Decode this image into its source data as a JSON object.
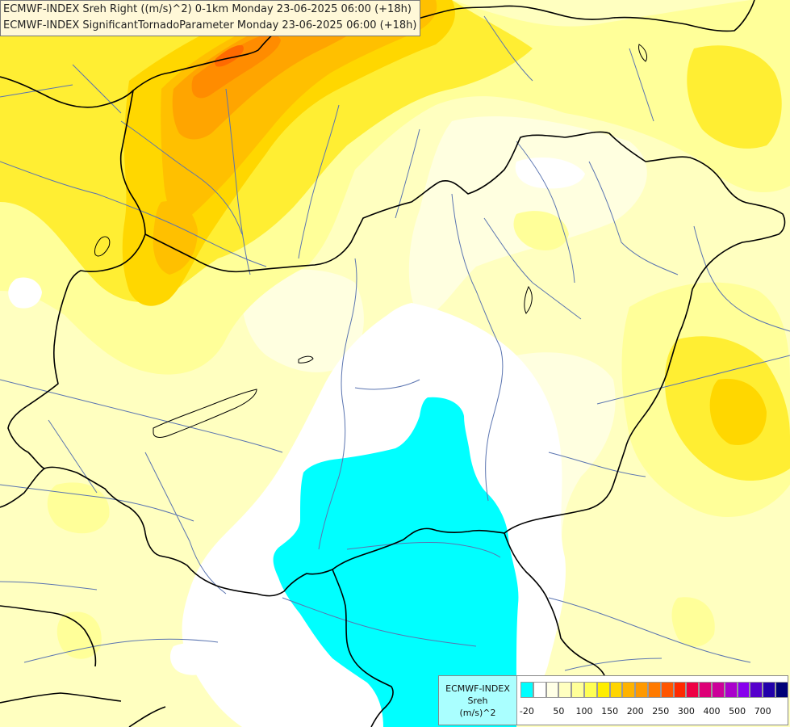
{
  "titles": {
    "line1": "ECMWF-INDEX Sreh Right ((m/s)^2) 0-1km Monday 23-06-2025 06:00 (+18h)",
    "line2": "ECMWF-INDEX SignificantTornadoParameter Monday 23-06-2025 06:00 (+18h)"
  },
  "legend": {
    "label_lines": [
      "ECMWF-INDEX",
      "Sreh",
      "(m/s)^2"
    ],
    "colors": [
      "#00ffff",
      "#ffffff",
      "#ffffe6",
      "#ffffc0",
      "#ffff99",
      "#ffff55",
      "#ffee00",
      "#ffd500",
      "#ffb300",
      "#ff9900",
      "#ff7a00",
      "#ff5500",
      "#ff2a00",
      "#ee0044",
      "#dd0077",
      "#cc0099",
      "#aa00cc",
      "#8800ee",
      "#5500cc",
      "#2200aa",
      "#000077"
    ],
    "ticks": [
      "-20",
      "50",
      "100",
      "150",
      "200",
      "250",
      "300",
      "400",
      "500",
      "700"
    ]
  },
  "map": {
    "field_colors": {
      "base": "#ffffc0",
      "light": "#ffffe0",
      "yellow": "#ffff99",
      "yellow2": "#ffee33",
      "gold": "#ffd700",
      "orange1": "#ffc000",
      "orange2": "#ffa500",
      "orange3": "#ff8c00",
      "red_orange": "#ff6a00",
      "white": "#ffffff",
      "cyan": "#00ffff"
    },
    "line_colors": {
      "border": "#000000",
      "river": "#5a74b0"
    }
  }
}
